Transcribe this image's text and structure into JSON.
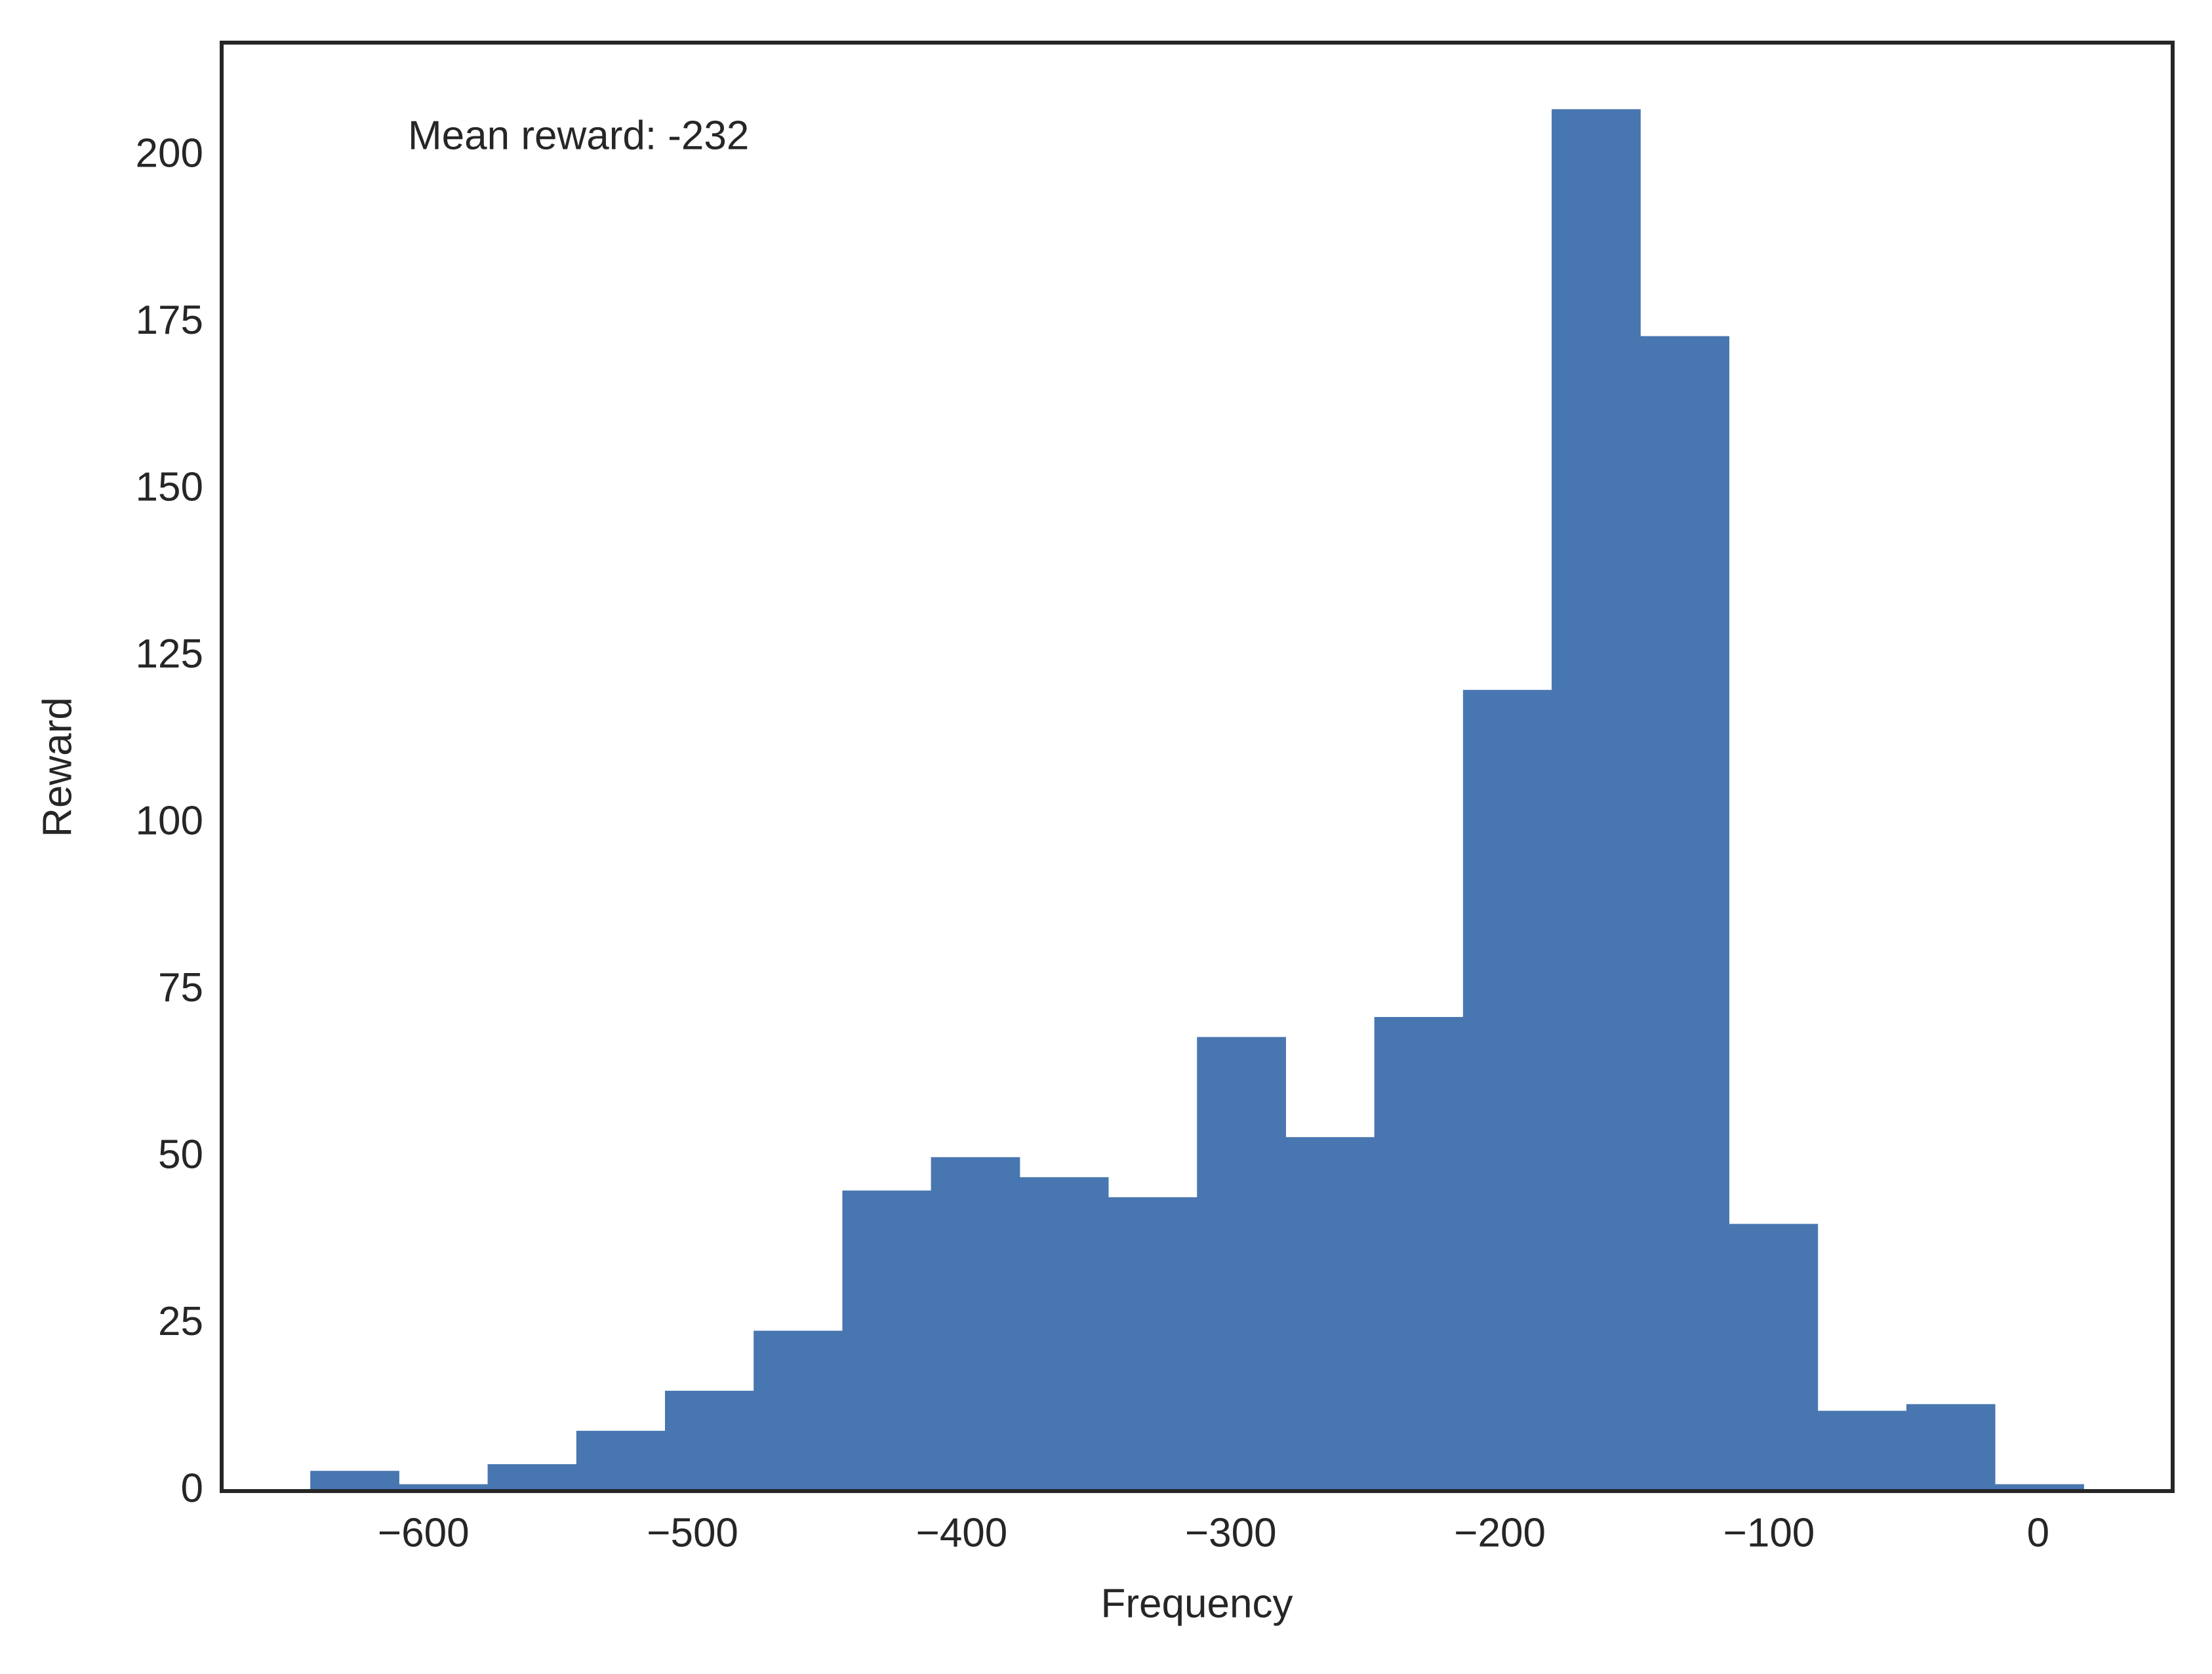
{
  "chart_data": {
    "type": "histogram",
    "xlabel": "Frequency",
    "ylabel": "Reward",
    "annotation": "Mean reward: -232",
    "bins": [
      -642,
      -609.05,
      -576.1,
      -543.15,
      -510.2,
      -477.25,
      -444.3,
      -411.35,
      -378.4,
      -345.45,
      -312.5,
      -279.55,
      -246.6,
      -213.65,
      -180.7,
      -147.75,
      -114.8,
      -81.85,
      -48.9,
      -15.95,
      17
    ],
    "values": [
      3,
      1,
      4,
      9,
      15,
      24,
      45,
      50,
      47,
      44,
      68,
      53,
      71,
      120,
      207,
      173,
      40,
      12,
      13,
      1
    ],
    "color": "#4876b0",
    "xlim": [
      -675,
      50
    ],
    "ylim": [
      0,
      217
    ],
    "xticks": [
      {
        "value": -600,
        "label": "−600"
      },
      {
        "value": -500,
        "label": "−500"
      },
      {
        "value": -400,
        "label": "−400"
      },
      {
        "value": -300,
        "label": "−300"
      },
      {
        "value": -200,
        "label": "−200"
      },
      {
        "value": -100,
        "label": "−100"
      },
      0
    ],
    "yticks": [
      0,
      25,
      50,
      75,
      100,
      125,
      150,
      175,
      200
    ],
    "grid": false
  }
}
